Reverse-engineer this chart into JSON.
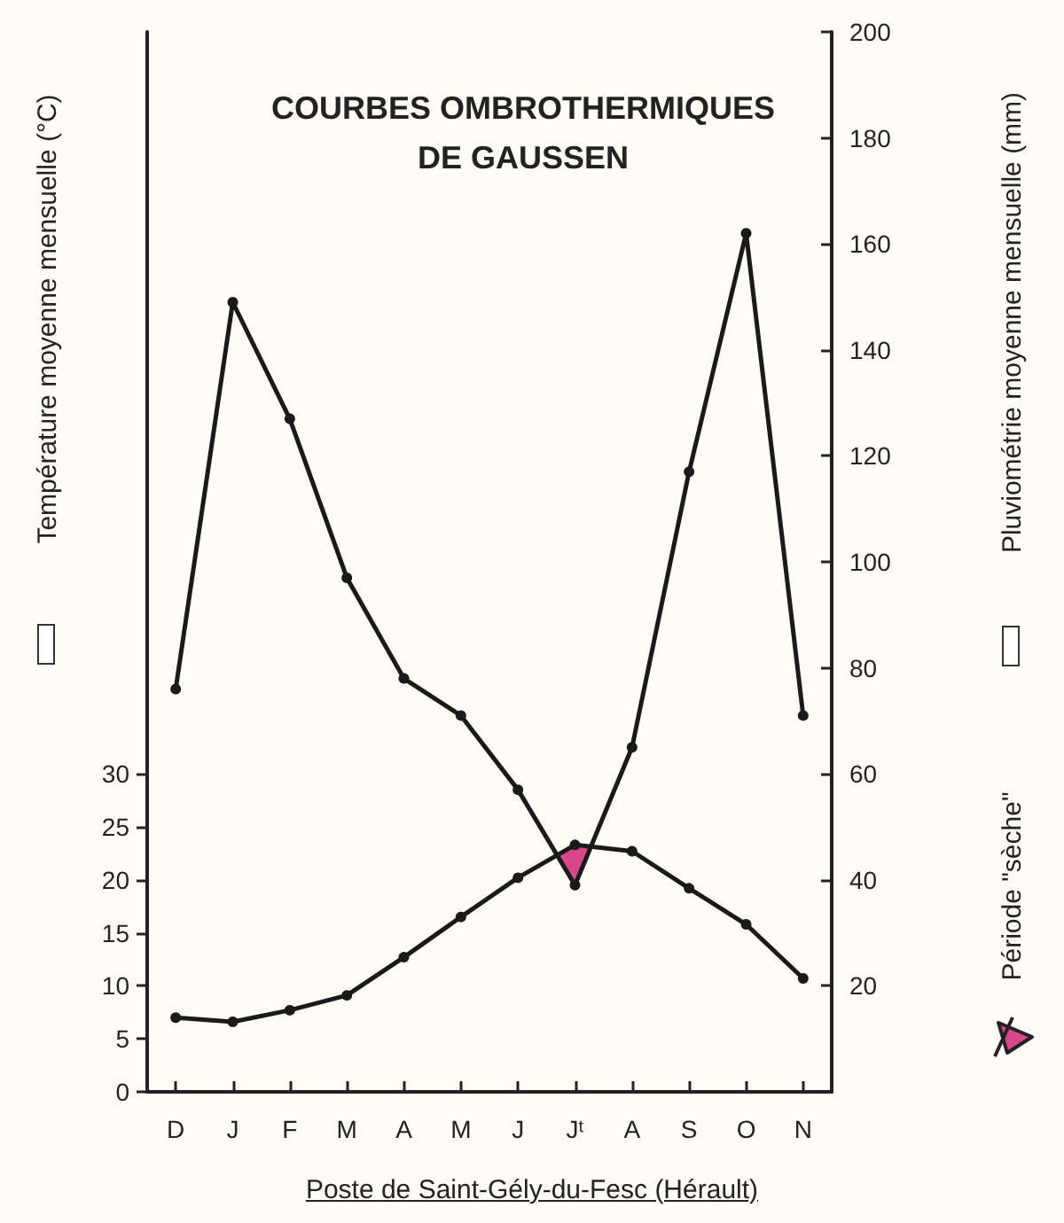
{
  "chart_data": {
    "type": "line",
    "title": "COURBES OMBROTHERMIQUES\nDE GAUSSEN",
    "xlabel": "Poste de Saint-Gély-du-Fesc (Hérault)",
    "ylabel": "Température moyenne mensuelle (°C)",
    "y2label": "Pluviométrie moyenne mensuelle (mm)",
    "annotations": [
      "Période \"sèche\""
    ],
    "categories": [
      "D",
      "J",
      "F",
      "M",
      "A",
      "M",
      "J",
      "Jᵗ",
      "A",
      "S",
      "O",
      "N"
    ],
    "series": [
      {
        "color": "#1a1a1a",
        "values": [
          7,
          6.6,
          7.7,
          9.1,
          12.7,
          16.5,
          20.2,
          23.3,
          22.7,
          19.2,
          15.8,
          10.7
        ]
      },
      {
        "color": "#1a1a1a",
        "axis": "y2",
        "values": [
          76,
          149,
          127,
          97,
          78,
          71,
          57,
          39,
          65,
          117,
          162,
          71
        ]
      }
    ],
    "ylim": [
      0,
      100
    ],
    "yticks": [
      0,
      5,
      10,
      15,
      20,
      25,
      30
    ],
    "y2lim": [
      0,
      200
    ],
    "y2ticks": [
      20,
      40,
      60,
      80,
      100,
      120,
      140,
      160,
      180,
      200
    ],
    "grid": false,
    "marker": "circle",
    "line_style": "solid"
  }
}
